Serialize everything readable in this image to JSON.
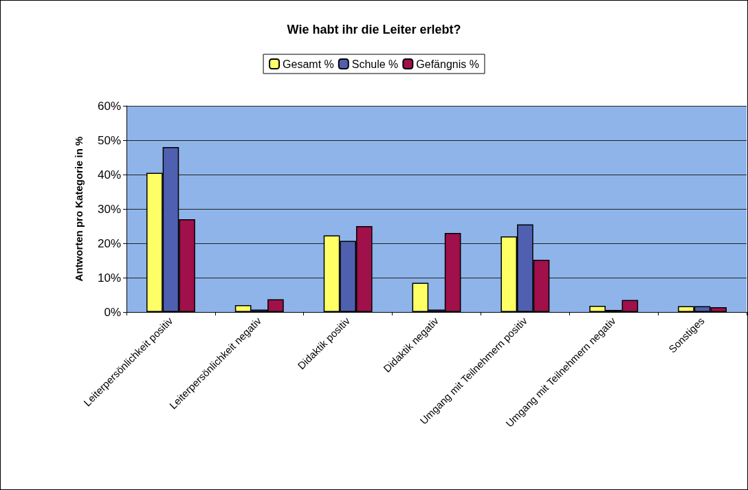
{
  "chart_data": {
    "type": "bar",
    "title": "Wie habt ihr die Leiter erlebt?",
    "ylabel": "Antworten pro Kategorie in %",
    "categories": [
      "Leiterpersönlichkeit positiv",
      "Leiterpersönlichkeit negativ",
      "Didaktik positiv",
      "Didaktik negativ",
      "Umgang mit Teilnehmern positiv",
      "Umgang mit Teilnehmern negativ",
      "Sonstiges"
    ],
    "series": [
      {
        "name": "Gesamt %",
        "color": "#ffff66",
        "values": [
          40.5,
          2,
          22.3,
          8.5,
          22,
          1.8,
          1.7
        ]
      },
      {
        "name": "Schule %",
        "color": "#5060b0",
        "values": [
          48,
          0.7,
          20.7,
          0.7,
          25.5,
          0.6,
          1.7
        ]
      },
      {
        "name": "Gefängnis %",
        "color": "#a0104a",
        "values": [
          27,
          3.7,
          25,
          23,
          15.2,
          3.5,
          1.4
        ]
      }
    ],
    "ylim": [
      0,
      60
    ],
    "yticks": [
      {
        "value": 0,
        "label": "0%"
      },
      {
        "value": 10,
        "label": "10%"
      },
      {
        "value": 20,
        "label": "20%"
      },
      {
        "value": 30,
        "label": "30%"
      },
      {
        "value": 40,
        "label": "40%"
      },
      {
        "value": 50,
        "label": "50%"
      },
      {
        "value": 60,
        "label": "60%"
      }
    ],
    "grid": "y",
    "legend": "top"
  }
}
